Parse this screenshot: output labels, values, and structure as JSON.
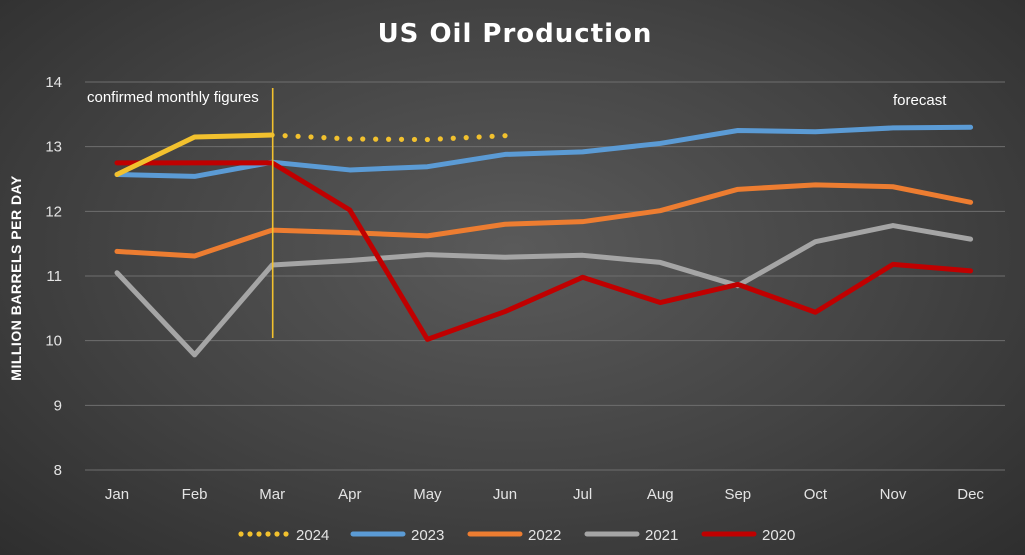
{
  "chart_data": {
    "type": "line",
    "title": "US Oil Production",
    "xlabel": "",
    "ylabel": "MILLION BARRELS PER DAY",
    "ylim": [
      8,
      14
    ],
    "yticks": [
      8,
      9,
      10,
      11,
      12,
      13,
      14
    ],
    "grid": true,
    "legend_position": "bottom",
    "categories": [
      "Jan",
      "Feb",
      "Mar",
      "Apr",
      "May",
      "Jun",
      "Jul",
      "Aug",
      "Sep",
      "Oct",
      "Nov",
      "Dec"
    ],
    "annotations": {
      "left": "confirmed monthly figures",
      "right": "forecast"
    },
    "divider_at": "Mar",
    "series": [
      {
        "name": "2024",
        "color": "#f2c12e",
        "style": "solid-then-dotted",
        "solid_until": 2,
        "values": [
          12.57,
          13.15,
          13.18,
          13.12,
          13.11,
          13.17,
          null,
          null,
          null,
          null,
          null,
          null
        ]
      },
      {
        "name": "2023",
        "color": "#5b9bd5",
        "values": [
          12.57,
          12.54,
          12.76,
          12.64,
          12.69,
          12.88,
          12.92,
          13.05,
          13.25,
          13.23,
          13.29,
          13.3
        ]
      },
      {
        "name": "2022",
        "color": "#ed7d31",
        "values": [
          11.38,
          11.31,
          11.71,
          11.67,
          11.62,
          11.8,
          11.84,
          12.01,
          12.34,
          12.41,
          12.38,
          12.14
        ]
      },
      {
        "name": "2021",
        "color": "#a5a5a5",
        "values": [
          11.05,
          9.78,
          11.17,
          11.24,
          11.33,
          11.29,
          11.32,
          11.21,
          10.85,
          11.53,
          11.78,
          11.57
        ]
      },
      {
        "name": "2020",
        "color": "#c00000",
        "values": [
          12.75,
          12.75,
          12.75,
          12.02,
          10.02,
          10.45,
          10.98,
          10.59,
          10.87,
          10.44,
          11.18,
          11.08
        ]
      }
    ]
  }
}
